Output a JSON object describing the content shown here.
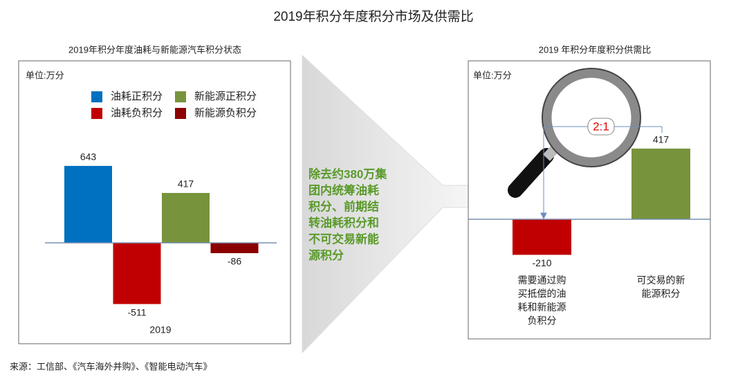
{
  "title": "2019年积分年度积分市场及供需比",
  "funnel_text": [
    "除去约380万集",
    "团内统筹油耗",
    "积分、前期结",
    "转油耗积分和",
    "不可交易新能",
    "源积分"
  ],
  "source": "来源：工信部、《汽车海外并购》、《智能电动汽车》",
  "chart_data": [
    {
      "type": "bar",
      "title": "2019年积分年度油耗与新能源汽车积分状态",
      "unit": "单位:万分",
      "categories": [
        "2019"
      ],
      "ylim": [
        -600,
        700
      ],
      "series": [
        {
          "name": "油耗正积分",
          "color": "#0070c0",
          "values": [
            643
          ]
        },
        {
          "name": "油耗负积分",
          "color": "#c00000",
          "values": [
            -511
          ]
        },
        {
          "name": "新能源正积分",
          "color": "#77933c",
          "values": [
            417
          ]
        },
        {
          "name": "新能源负积分",
          "color": "#8b0000",
          "values": [
            -86
          ]
        }
      ]
    },
    {
      "type": "bar",
      "title": "2019 年积分年度积分供需比",
      "unit": "单位:万分",
      "categories": [
        "需要通过购买抵偿的油耗和新能源负积分",
        "可交易的新能源积分"
      ],
      "values": [
        -210,
        417
      ],
      "colors": [
        "#c00000",
        "#77933c"
      ],
      "ylim": [
        -300,
        500
      ],
      "annotation": "2:1"
    }
  ]
}
